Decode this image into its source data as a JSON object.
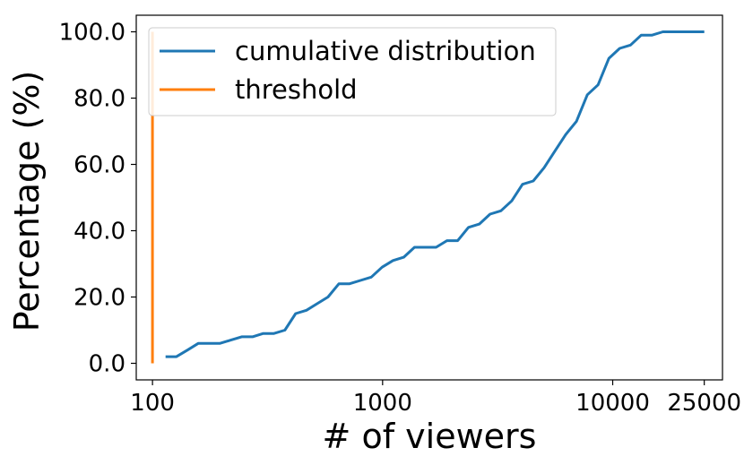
{
  "chart_data": {
    "type": "line",
    "xscale": "log",
    "xlabel": "# of viewers",
    "ylabel": "Percentage (%)",
    "xlim": [
      85,
      30000
    ],
    "ylim": [
      -5,
      105
    ],
    "xticks": [
      {
        "value": 100,
        "label": "100"
      },
      {
        "value": 1000,
        "label": "1000"
      },
      {
        "value": 10000,
        "label": "10000"
      },
      {
        "value": 25000,
        "label": "25000"
      }
    ],
    "yticks": [
      {
        "value": 0,
        "label": "0.0"
      },
      {
        "value": 20,
        "label": "20.0"
      },
      {
        "value": 40,
        "label": "40.0"
      },
      {
        "value": 60,
        "label": "60.0"
      },
      {
        "value": 80,
        "label": "80.0"
      },
      {
        "value": 100,
        "label": "100.0"
      }
    ],
    "legend_position": "top-left",
    "grid": false,
    "series": [
      {
        "name": "cumulative distribution",
        "color": "#1f77b4",
        "x": [
          114,
          127,
          142,
          158,
          176,
          196,
          219,
          244,
          272,
          303,
          337,
          376,
          419,
          467,
          520,
          579,
          646,
          719,
          801,
          893,
          995,
          1109,
          1235,
          1376,
          1533,
          1708,
          1903,
          2120,
          2362,
          2632,
          2932,
          3267,
          3640,
          4055,
          4518,
          5034,
          5608,
          6248,
          6961,
          7756,
          8641,
          9627,
          10726,
          11950,
          13314,
          14833,
          16526,
          18412,
          20513,
          22854,
          25000
        ],
        "y": [
          2,
          2,
          4,
          6,
          6,
          6,
          7,
          8,
          8,
          9,
          9,
          10,
          15,
          16,
          18,
          20,
          24,
          24,
          25,
          26,
          29,
          31,
          32,
          35,
          35,
          35,
          37,
          37,
          41,
          42,
          45,
          46,
          49,
          54,
          55,
          59,
          64,
          69,
          73,
          81,
          84,
          92,
          95,
          96,
          99,
          99,
          100,
          100,
          100,
          100,
          100
        ]
      },
      {
        "name": "threshold",
        "color": "#ff7f0e",
        "x": [
          100,
          100
        ],
        "y": [
          0,
          100
        ]
      }
    ]
  }
}
